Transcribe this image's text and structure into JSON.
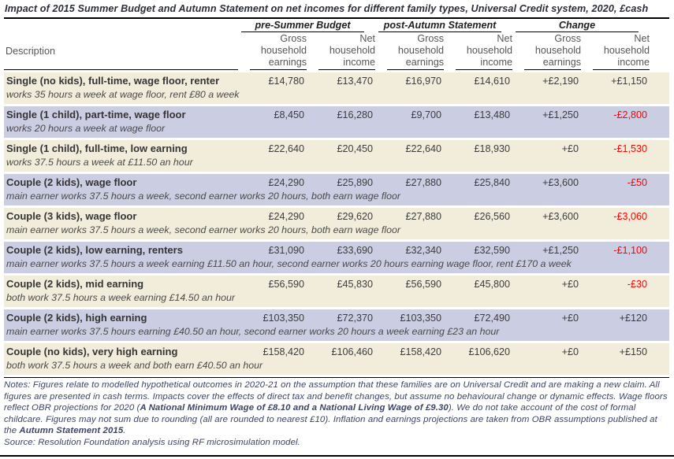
{
  "title": "Impact of 2015 Summer Budget and Autumn Statement on net incomes for different family types, Universal Credit system, 2020, £cash",
  "table": {
    "description_header": "Description",
    "groups": [
      {
        "label": "pre-Summer Budget"
      },
      {
        "label": "post-Autumn Statement"
      },
      {
        "label": "Change"
      }
    ],
    "column_headers": [
      {
        "lines": [
          "Gross",
          "household",
          "earnings"
        ]
      },
      {
        "lines": [
          "Net",
          "household",
          "income"
        ]
      },
      {
        "lines": [
          "Gross",
          "household",
          "earnings"
        ]
      },
      {
        "lines": [
          "Net",
          "household",
          "income"
        ]
      },
      {
        "lines": [
          "Gross",
          "household",
          "earnings"
        ]
      },
      {
        "lines": [
          "Net",
          "household",
          "income"
        ]
      }
    ],
    "rows": [
      {
        "name": "Single (no kids), full-time, wage floor, renter",
        "detail": "works 35 hours a week at wage floor, rent £80 a week",
        "values": [
          "£14,780",
          "£13,470",
          "£16,970",
          "£14,610",
          "+£2,190",
          "+£1,150"
        ],
        "shade": "cream"
      },
      {
        "name": "Single (1 child), part-time, wage floor",
        "detail": "works 20 hours a week at wage floor",
        "values": [
          "£8,450",
          "£16,280",
          "£9,700",
          "£13,480",
          "+£1,250",
          "-£2,800"
        ],
        "shade": "lavender"
      },
      {
        "name": "Single (1 child), full-time, low earning",
        "detail": "works 37.5 hours a week at £11.50 an hour",
        "values": [
          "£22,640",
          "£20,450",
          "£22,640",
          "£18,930",
          "+£0",
          "-£1,530"
        ],
        "shade": "cream"
      },
      {
        "name": "Couple (2 kids), wage floor",
        "detail": "main earner works 37.5 hours a week, second earner works 20 hours, both earn wage floor",
        "values": [
          "£24,290",
          "£25,890",
          "£27,880",
          "£25,840",
          "+£3,600",
          "-£50"
        ],
        "shade": "lavender"
      },
      {
        "name": "Couple (3 kids), wage floor",
        "detail": "main earner works 37.5 hours a week, second earner works 20 hours, both earn wage floor",
        "values": [
          "£24,290",
          "£29,620",
          "£27,880",
          "£26,560",
          "+£3,600",
          "-£3,060"
        ],
        "shade": "cream"
      },
      {
        "name": "Couple (2 kids), low earning, renters",
        "detail": "main earner works 37.5 hours a week earning £11.50 an hour, second earner works 20 hours earning wage floor, rent £170 a week",
        "values": [
          "£31,090",
          "£33,690",
          "£32,340",
          "£32,590",
          "+£1,250",
          "-£1,100"
        ],
        "shade": "lavender"
      },
      {
        "name": "Couple (2 kids), mid earning",
        "detail": "both work 37.5 hours a week earning £14.50 an hour",
        "values": [
          "£56,590",
          "£45,830",
          "£56,590",
          "£45,800",
          "+£0",
          "-£30"
        ],
        "shade": "cream"
      },
      {
        "name": "Couple (2 kids), high earning",
        "detail": "main earner works 37.5 hours earning £40.50 an hour, second earner works 20 hours a week earning £23 an hour",
        "values": [
          "£103,350",
          "£72,370",
          "£103,350",
          "£72,490",
          "+£0",
          "+£120"
        ],
        "shade": "lavender"
      },
      {
        "name": "Couple (no kids), very high earning",
        "detail": "both work 37.5 hours a week and both earn £40.50 an hour",
        "values": [
          "£158,420",
          "£106,460",
          "£158,420",
          "£106,620",
          "+£0",
          "+£150"
        ],
        "shade": "cream"
      }
    ]
  },
  "notes": {
    "segments": [
      {
        "text": "Notes: Figures relate to modelled hypothetical outcomes in 2020-21 on the assumption that these families are on Universal Credit and are making a new claim. All figures are presented in cash terms. Impacts cover the effects of direct tax and benefit changes, but assume no behavioural change or dynamic effects. Wage floors reflect OBR projections for 2020 (",
        "bold": false
      },
      {
        "text": "A National Minimum Wage of £8.10 and a National Living Wage of £9.30",
        "bold": true
      },
      {
        "text": "). We do not take account of the cost of formal childcare. Figures may not sum due to rounding (all are rounded to nearest £10). Inflation and earnings projections are taken from OBR assumptions published at the ",
        "bold": false
      },
      {
        "text": "Autumn Statement 2015",
        "bold": true
      },
      {
        "text": ".",
        "bold": false
      }
    ],
    "source": "Source: Resolution Foundation analysis using RF microsimulation model."
  },
  "colors": {
    "row_cream": "#F2ECDA",
    "row_lavender": "#CBCDE2",
    "negative_value": "#FF0000",
    "title_text": "#2B2D3A",
    "notes_text": "#3D4466"
  }
}
